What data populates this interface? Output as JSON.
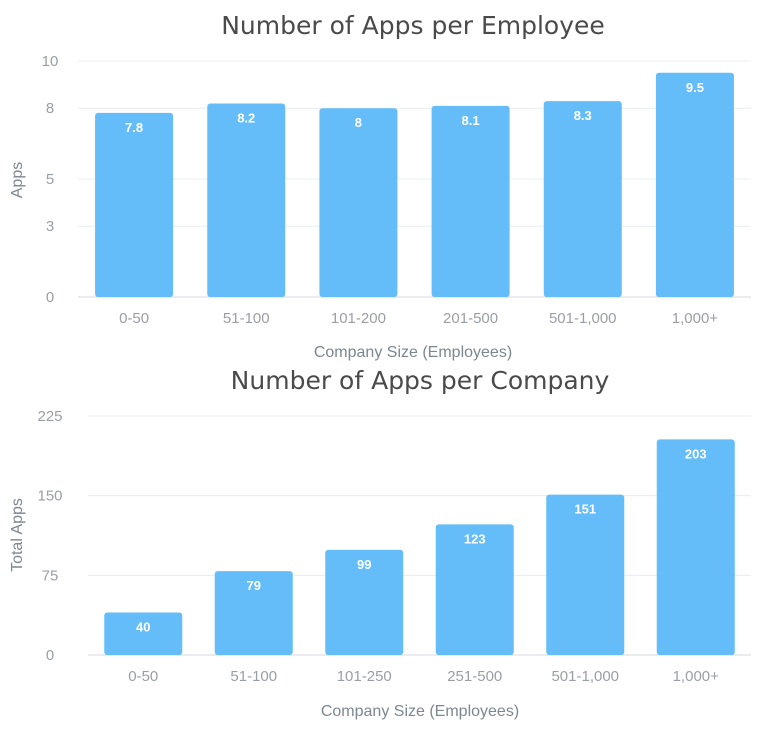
{
  "chart_data": [
    {
      "type": "bar",
      "title": "Number of Apps per Employee",
      "xlabel": "Company Size (Employees)",
      "ylabel": "Apps",
      "categories": [
        "0-50",
        "51-100",
        "101-200",
        "201-500",
        "501-1,000",
        "1,000+"
      ],
      "values": [
        7.8,
        8.2,
        8,
        8.1,
        8.3,
        9.5
      ],
      "value_labels": [
        "7.8",
        "8.2",
        "8",
        "8.1",
        "8.3",
        "9.5"
      ],
      "yticks": [
        "0",
        "3",
        "5",
        "8",
        "10"
      ],
      "ylim": [
        0,
        10
      ],
      "grid": true,
      "color": "#64bdf8"
    },
    {
      "type": "bar",
      "title": "Number of Apps per Company",
      "xlabel": "Company Size (Employees)",
      "ylabel": "Total Apps",
      "categories": [
        "0-50",
        "51-100",
        "101-250",
        "251-500",
        "501-1,000",
        "1,000+"
      ],
      "values": [
        40,
        79,
        99,
        123,
        151,
        203
      ],
      "value_labels": [
        "40",
        "79",
        "99",
        "123",
        "151",
        "203"
      ],
      "yticks": [
        "0",
        "75",
        "150",
        "225"
      ],
      "ylim": [
        0,
        225
      ],
      "grid": true,
      "color": "#64bdf8"
    }
  ]
}
